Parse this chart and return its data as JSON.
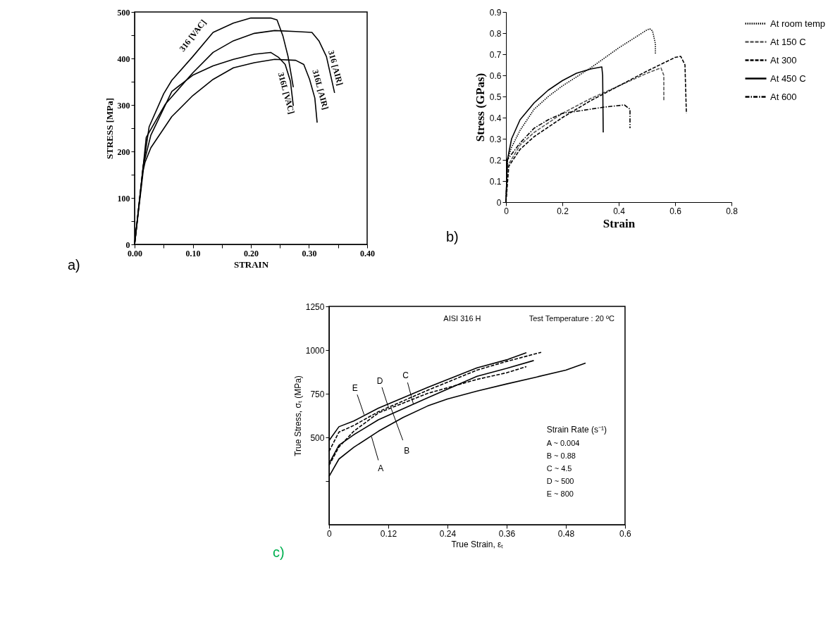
{
  "chart_data": [
    {
      "type": "line",
      "xlabel": "STRAIN",
      "ylabel": "STRESS [MPa]",
      "xlim": [
        0,
        0.4
      ],
      "ylim": [
        0,
        500
      ],
      "xticks": [
        {
          "value": 0,
          "label": "0.00"
        },
        {
          "value": 0.05,
          "label": null
        },
        {
          "value": 0.1,
          "label": "0.10"
        },
        {
          "value": 0.15,
          "label": null
        },
        {
          "value": 0.2,
          "label": "0.20"
        },
        {
          "value": 0.25,
          "label": null
        },
        {
          "value": 0.3,
          "label": "0.30"
        },
        {
          "value": 0.35,
          "label": null
        },
        {
          "value": 0.4,
          "label": "0.40"
        }
      ],
      "yticks": [
        0,
        {
          "value": 50,
          "label": null
        },
        100,
        {
          "value": 150,
          "label": null
        },
        200,
        {
          "value": 250,
          "label": null
        },
        300,
        {
          "value": 350,
          "label": null
        },
        400,
        {
          "value": 450,
          "label": null
        },
        500
      ],
      "grid": false,
      "legend": false,
      "line_style": "solid",
      "marker": "none",
      "annotations": [
        "a)"
      ],
      "series": [
        {
          "name": "316 [VAC]",
          "color": "#000000",
          "x": [
            0,
            0.015,
            0.025,
            0.05,
            0.064,
            0.1,
            0.135,
            0.17,
            0.2,
            0.234,
            0.245,
            0.255,
            0.264,
            0.273
          ],
          "values": [
            0,
            170,
            253,
            324,
            353,
            404,
            456,
            476,
            487,
            487,
            483,
            449,
            404,
            338
          ]
        },
        {
          "name": "316 [AIR]",
          "color": "#000000",
          "x": [
            0,
            0.015,
            0.02,
            0.053,
            0.1,
            0.135,
            0.17,
            0.206,
            0.241,
            0.277,
            0.305,
            0.317,
            0.33,
            0.344
          ],
          "values": [
            0,
            170,
            230,
            302,
            369,
            413,
            438,
            454,
            460,
            458,
            456,
            438,
            404,
            326
          ]
        },
        {
          "name": "316L [VAC]",
          "color": "#000000",
          "x": [
            0,
            0.015,
            0.028,
            0.064,
            0.1,
            0.135,
            0.17,
            0.206,
            0.234,
            0.248,
            0.259,
            0.268,
            0.273
          ],
          "values": [
            0,
            170,
            235,
            329,
            364,
            384,
            398,
            409,
            413,
            402,
            387,
            351,
            298
          ]
        },
        {
          "name": "316L [AIR]",
          "color": "#000000",
          "x": [
            0,
            0.015,
            0.018,
            0.028,
            0.064,
            0.1,
            0.135,
            0.17,
            0.206,
            0.241,
            0.277,
            0.291,
            0.301,
            0.31,
            0.314
          ],
          "values": [
            0,
            160,
            177,
            208,
            275,
            320,
            355,
            380,
            391,
            398,
            396,
            387,
            355,
            315,
            262
          ]
        }
      ]
    },
    {
      "type": "line",
      "xlabel": "Strain",
      "ylabel": "Stress (GPas)",
      "xlim": [
        0,
        0.8
      ],
      "ylim": [
        0,
        0.9
      ],
      "xticks": [
        0,
        0.2,
        0.4,
        0.6,
        0.8
      ],
      "yticks": [
        0,
        0.1,
        0.2,
        0.3,
        0.4,
        0.5,
        0.6,
        0.7,
        0.8,
        0.9
      ],
      "grid": false,
      "legend": "right",
      "marker": "none",
      "annotations": [
        "b)"
      ],
      "series": [
        {
          "name": "At room temp",
          "color": "#000000",
          "line_style": "dotted",
          "x": [
            0,
            0.005,
            0.02,
            0.05,
            0.1,
            0.15,
            0.2,
            0.3,
            0.4,
            0.5,
            0.51,
            0.52,
            0.53,
            0.53
          ],
          "values": [
            0,
            0.2,
            0.26,
            0.34,
            0.44,
            0.5,
            0.55,
            0.635,
            0.73,
            0.815,
            0.82,
            0.81,
            0.75,
            0.7
          ]
        },
        {
          "name": "At 150 C",
          "color": "#595959",
          "line_style": "dashed",
          "x": [
            0,
            0.005,
            0.05,
            0.1,
            0.2,
            0.3,
            0.4,
            0.5,
            0.55,
            0.56,
            0.56
          ],
          "values": [
            0,
            0.17,
            0.27,
            0.33,
            0.42,
            0.49,
            0.55,
            0.61,
            0.635,
            0.6,
            0.48
          ]
        },
        {
          "name": "At 300",
          "color": "#000000",
          "line_style": "dashed",
          "x": [
            0,
            0.01,
            0.05,
            0.1,
            0.2,
            0.3,
            0.4,
            0.5,
            0.6,
            0.62,
            0.635,
            0.64
          ],
          "values": [
            0,
            0.17,
            0.25,
            0.31,
            0.4,
            0.48,
            0.55,
            0.62,
            0.685,
            0.69,
            0.65,
            0.42
          ]
        },
        {
          "name": "At 450 C",
          "color": "#000000",
          "line_style": "solid",
          "x": [
            0,
            0.005,
            0.02,
            0.05,
            0.1,
            0.15,
            0.2,
            0.25,
            0.3,
            0.34,
            0.343,
            0.345
          ],
          "values": [
            0,
            0.2,
            0.3,
            0.39,
            0.47,
            0.53,
            0.575,
            0.61,
            0.63,
            0.64,
            0.6,
            0.33
          ]
        },
        {
          "name": "At 600",
          "color": "#000000",
          "line_style": "dashdot",
          "x": [
            0,
            0.005,
            0.05,
            0.1,
            0.15,
            0.2,
            0.25,
            0.3,
            0.35,
            0.42,
            0.44,
            0.44
          ],
          "values": [
            0,
            0.2,
            0.28,
            0.35,
            0.39,
            0.42,
            0.43,
            0.44,
            0.45,
            0.46,
            0.44,
            0.35
          ]
        }
      ]
    },
    {
      "type": "line",
      "xlabel": "True Strain, εₜ",
      "ylabel": "True Stress, σₜ (MPa)",
      "legend_title": "Strain Rate (s⁻¹)",
      "xlim": [
        0,
        0.6
      ],
      "ylim": [
        0,
        1250
      ],
      "xticks": [
        0,
        0.12,
        0.24,
        0.36,
        0.48,
        0.6
      ],
      "yticks": [
        {
          "value": 250,
          "label": null
        },
        500,
        750,
        1000,
        1250
      ],
      "grid": false,
      "legend": false,
      "marker": "none",
      "annotations": [
        "AISI 316 H",
        "Test Temperature : 20 ºC",
        "A ~ 0.004",
        "B ~ 0.88",
        "C ~ 4.5",
        "D ~ 500",
        "E ~ 800",
        "c)",
        {
          "text": "E",
          "x": 0.071,
          "y": 630
        },
        {
          "text": "D",
          "x": 0.12,
          "y": 675
        },
        {
          "text": "C",
          "x": 0.171,
          "y": 690
        },
        {
          "text": "B",
          "x": 0.126,
          "y": 665
        },
        {
          "text": "A",
          "x": 0.086,
          "y": 505
        }
      ],
      "series": [
        {
          "color": "#000000",
          "line_style": "solid",
          "x": [
            0,
            0.02,
            0.05,
            0.1,
            0.15,
            0.2,
            0.24,
            0.3,
            0.36,
            0.42,
            0.48,
            0.52
          ],
          "values": [
            277,
            376,
            443,
            535,
            614,
            680,
            720,
            765,
            806,
            845,
            885,
            925
          ]
        },
        {
          "color": "#000000",
          "line_style": "dashed",
          "x": [
            0,
            0.02,
            0.05,
            0.1,
            0.2,
            0.3,
            0.36,
            0.4
          ],
          "values": [
            340,
            445,
            535,
            640,
            752,
            832,
            870,
            905
          ]
        },
        {
          "color": "#000000",
          "line_style": "solid",
          "x": [
            0,
            0.02,
            0.05,
            0.1,
            0.2,
            0.3,
            0.36,
            0.415
          ],
          "values": [
            350,
            455,
            515,
            601,
            727,
            850,
            895,
            940
          ]
        },
        {
          "color": "#000000",
          "line_style": "dashed",
          "x": [
            0,
            0.02,
            0.05,
            0.1,
            0.2,
            0.3,
            0.36,
            0.43
          ],
          "values": [
            420,
            530,
            568,
            647,
            770,
            885,
            935,
            987
          ]
        },
        {
          "color": "#000000",
          "line_style": "solid",
          "x": [
            0,
            0.02,
            0.05,
            0.1,
            0.2,
            0.3,
            0.36,
            0.4
          ],
          "values": [
            482,
            561,
            594,
            667,
            786,
            898,
            944,
            985
          ]
        }
      ]
    }
  ]
}
